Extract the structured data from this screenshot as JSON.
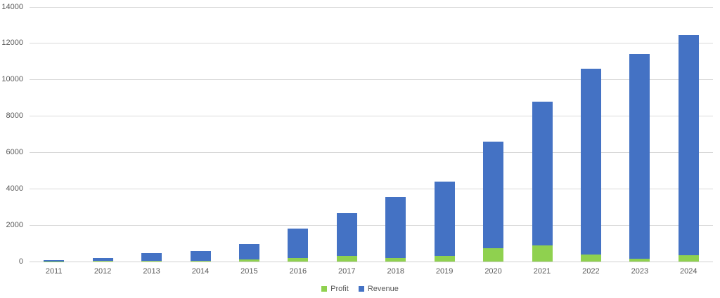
{
  "chart_data": {
    "type": "bar",
    "stacked": true,
    "title": "",
    "xlabel": "",
    "ylabel": "",
    "categories": [
      "2011",
      "2012",
      "2013",
      "2014",
      "2015",
      "2016",
      "2017",
      "2018",
      "2019",
      "2020",
      "2021",
      "2022",
      "2023",
      "2024"
    ],
    "series": [
      {
        "name": "Profit",
        "color": "#8FD14F",
        "values": [
          10,
          30,
          40,
          50,
          100,
          200,
          300,
          200,
          300,
          750,
          900,
          400,
          150,
          350
        ]
      },
      {
        "name": "Revenue",
        "color": "#4472C4",
        "values": [
          80,
          170,
          430,
          540,
          860,
          1600,
          2350,
          3350,
          4100,
          5850,
          7900,
          10200,
          11250,
          12100
        ]
      }
    ],
    "ylim": [
      0,
      14000
    ],
    "yticks": [
      0,
      2000,
      4000,
      6000,
      8000,
      10000,
      12000,
      14000
    ],
    "grid": true,
    "legend_position": "bottom",
    "axis_label_color": "#595959",
    "gridline_color": "#D9D9D9",
    "background_color": "#FFFFFF"
  }
}
